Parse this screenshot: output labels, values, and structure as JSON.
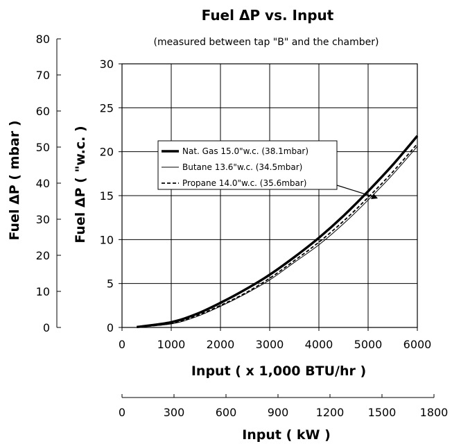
{
  "chart_data": {
    "type": "line",
    "title": "Fuel ΔP vs. Input",
    "subtitle": "(measured between tap \"B\" and the chamber)",
    "xlabel": "Input ( x 1,000 BTU/hr )",
    "ylabel": "Fuel ΔP ( \"w.c. )",
    "xlim": [
      0,
      6000
    ],
    "ylim": [
      0,
      30
    ],
    "x_ticks": [
      "0",
      "1000",
      "2000",
      "3000",
      "4000",
      "5000",
      "6000"
    ],
    "y_ticks": [
      "0",
      "5",
      "10",
      "15",
      "20",
      "25",
      "30"
    ],
    "grid": true,
    "secondary_x_axis": {
      "label": "Input ( kW )",
      "range": [
        0,
        1800
      ],
      "ticks": [
        "0",
        "300",
        "600",
        "900",
        "1200",
        "1500",
        "1800"
      ]
    },
    "secondary_y_axis": {
      "label": "Fuel ΔP ( mbar )",
      "range": [
        0,
        80
      ],
      "ticks": [
        "0",
        "10",
        "20",
        "30",
        "40",
        "50",
        "60",
        "70",
        "80"
      ]
    },
    "legend_position": "upper-left",
    "annotation": "arrow pointing to curves near 5000",
    "x": [
      300,
      1000,
      1500,
      2000,
      2500,
      3000,
      3500,
      4000,
      4500,
      5000,
      5500,
      6000
    ],
    "series": [
      {
        "name": "Nat. Gas 15.0\"w.c. (38.1mbar)",
        "style": "thick-solid",
        "values": [
          0.05,
          0.6,
          1.5,
          2.8,
          4.3,
          6.0,
          8.0,
          10.2,
          12.7,
          15.5,
          18.5,
          21.8
        ]
      },
      {
        "name": "Butane 13.6\"w.c. (34.5mbar)",
        "style": "thin-solid",
        "values": [
          0.03,
          0.4,
          1.2,
          2.4,
          3.8,
          5.4,
          7.4,
          9.4,
          11.8,
          14.5,
          17.4,
          20.6
        ]
      },
      {
        "name": "Propane 14.0\"w.c. (35.6mbar)",
        "style": "dashed",
        "values": [
          0.04,
          0.45,
          1.3,
          2.5,
          3.9,
          5.6,
          7.6,
          9.7,
          12.1,
          14.8,
          17.7,
          20.9
        ]
      }
    ]
  }
}
